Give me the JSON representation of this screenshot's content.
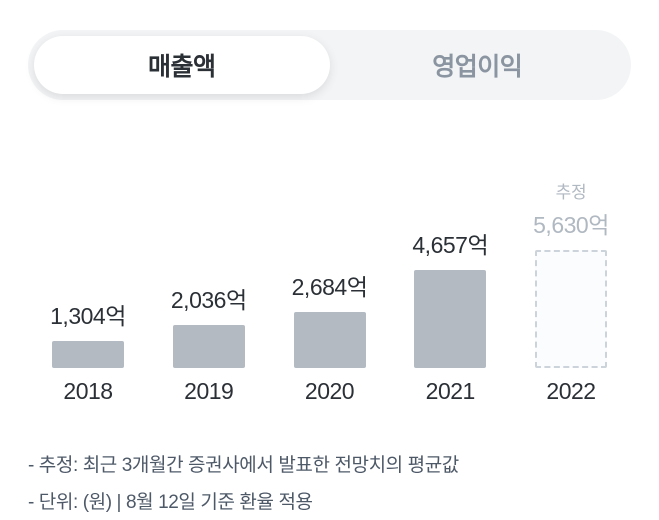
{
  "tabs": [
    {
      "label": "매출액",
      "active": true
    },
    {
      "label": "영업이익",
      "active": false
    }
  ],
  "chart_data": {
    "type": "bar",
    "title": "",
    "xlabel": "",
    "ylabel": "",
    "categories": [
      "2018",
      "2019",
      "2020",
      "2021",
      "2022"
    ],
    "values": [
      1304,
      2036,
      2684,
      4657,
      5630
    ],
    "value_labels": [
      "1,304억",
      "2,036억",
      "2,684억",
      "4,657억",
      "5,630억"
    ],
    "unit": "억",
    "ylim": [
      0,
      5630
    ],
    "grid": false,
    "legend": "none",
    "estimated_index": 4,
    "estimated_label": "추정"
  },
  "footer": {
    "note_estimate": "- 추정: 최근 3개월간 증권사에서 발표한 전망치의 평균값",
    "note_unit": "- 단위: (원) | 8월 12일 기준 환율 적용"
  },
  "colors": {
    "tab_bg": "#f2f4f6",
    "active_tab_bg": "#ffffff",
    "text_dark": "#2b3036",
    "text_gray": "#8b95a1",
    "bar": "#b3bac2",
    "estimated_text": "#b0b8c1",
    "footer_text": "#4e5968"
  }
}
